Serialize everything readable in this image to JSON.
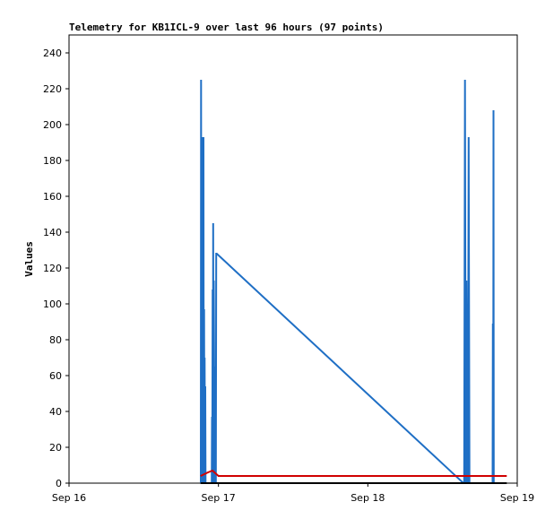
{
  "chart_data": {
    "type": "line",
    "title": "Telemetry for KB1ICL-9 over last 96 hours (97 points)",
    "xlabel": "",
    "ylabel": "Values",
    "xlim": [
      "Sep 16",
      "Sep 19"
    ],
    "ylim": [
      0,
      250
    ],
    "x_ticks": [
      "Sep 16",
      "Sep 17",
      "Sep 18",
      "Sep 19"
    ],
    "y_ticks": [
      0,
      20,
      40,
      60,
      80,
      100,
      120,
      140,
      160,
      180,
      200,
      220,
      240
    ],
    "grid": false,
    "legend": "none",
    "series": [
      {
        "color": "#1f6fc5",
        "x": [
          0.882,
          0.884,
          0.886,
          0.888,
          0.89,
          0.892,
          0.894,
          0.896,
          0.898,
          0.9,
          0.902,
          0.904,
          0.906,
          0.908,
          0.91,
          0.912,
          0.914,
          0.955,
          0.957,
          0.959,
          0.961,
          0.963,
          0.965,
          0.967,
          0.969,
          0.975,
          0.977,
          0.979,
          0.981,
          0.983,
          0.985,
          0.987,
          0.989,
          2.64,
          2.645,
          2.65,
          2.655,
          2.66,
          2.665,
          2.67,
          2.675,
          2.68,
          2.685,
          2.69,
          2.695,
          2.7,
          2.835,
          2.837,
          2.839,
          2.841,
          2.843,
          2.845
        ],
        "y": [
          0,
          225,
          0,
          113,
          0,
          73,
          0,
          193,
          0,
          193,
          0,
          97,
          0,
          70,
          0,
          54,
          0,
          0,
          37,
          0,
          108,
          0,
          145,
          0,
          113,
          0,
          57,
          0,
          65,
          0,
          128,
          128,
          128,
          0,
          0,
          225,
          0,
          113,
          0,
          0,
          193,
          0,
          0,
          0,
          0,
          0,
          0,
          89,
          0,
          208,
          0,
          0
        ]
      },
      {
        "color": "#d00000",
        "x": [
          0.88,
          0.93,
          0.96,
          1.0,
          1.5,
          2.0,
          2.5,
          2.93
        ],
        "y": [
          4,
          6,
          7,
          4,
          4,
          4,
          4,
          4
        ]
      },
      {
        "color": "#000000",
        "x": [
          0.88,
          2.93
        ],
        "y": [
          0,
          0
        ]
      }
    ]
  }
}
